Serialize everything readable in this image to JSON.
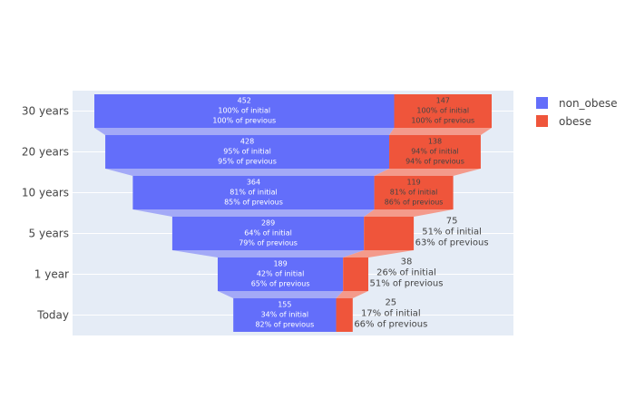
{
  "chart_data": {
    "type": "funnel",
    "categories": [
      "30 years",
      "20 years",
      "10 years",
      "5 years",
      "1 year",
      "Today"
    ],
    "series": [
      {
        "name": "non_obese",
        "color": "#636efa",
        "connector_color": "#a3a9f7",
        "values": [
          452,
          428,
          364,
          289,
          189,
          155
        ],
        "pct_initial": [
          "100% of initial",
          "95% of initial",
          "81% of initial",
          "64% of initial",
          "42% of initial",
          "34% of initial"
        ],
        "pct_previous": [
          "100% of previous",
          "95% of previous",
          "85% of previous",
          "79% of previous",
          "65% of previous",
          "82% of previous"
        ]
      },
      {
        "name": "obese",
        "color": "#ef553b",
        "connector_color": "#f49a8b",
        "values": [
          147,
          138,
          119,
          75,
          38,
          25
        ],
        "pct_initial": [
          "100% of initial",
          "94% of initial",
          "81% of initial",
          "51% of initial",
          "26% of initial",
          "17% of initial"
        ],
        "pct_previous": [
          "100% of previous",
          "94% of previous",
          "86% of previous",
          "63% of previous",
          "51% of previous",
          "66% of previous"
        ]
      }
    ],
    "plot_background": "#e5ecf6",
    "grid_color": "#ffffff",
    "legend_position": "top-right"
  }
}
